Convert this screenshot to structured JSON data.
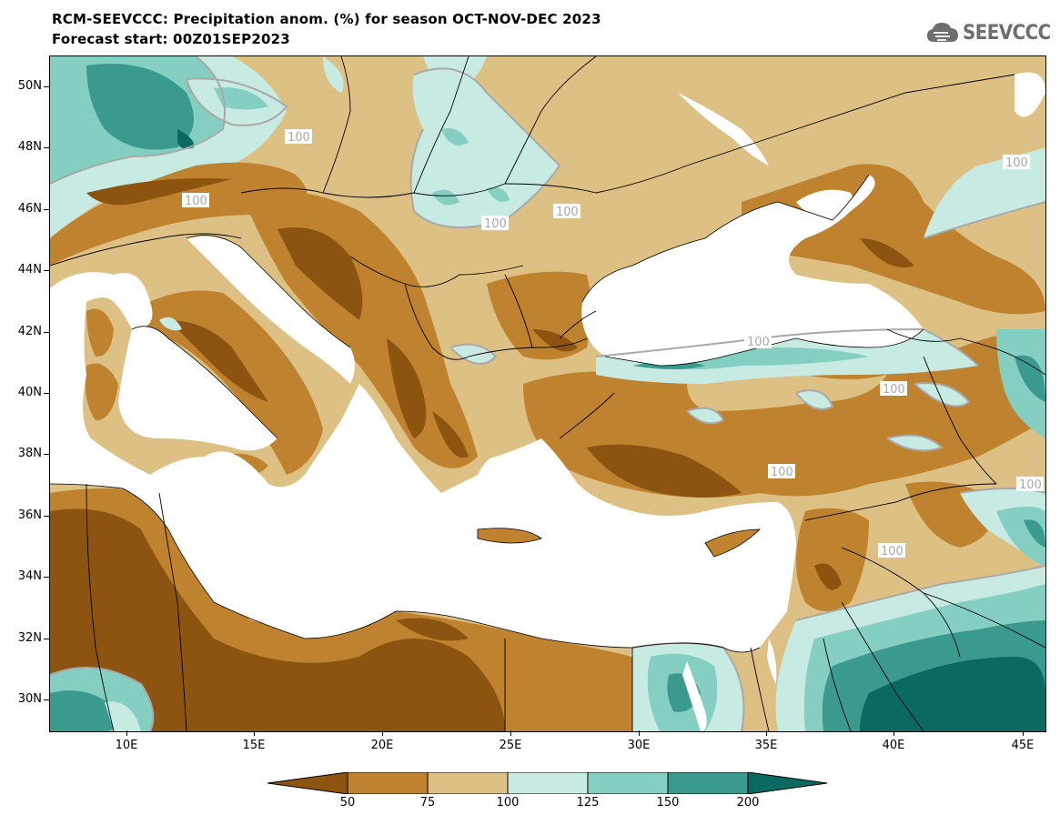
{
  "header": {
    "title_line1": "RCM-SEEVCCC: Precipitation anom. (%) for season OCT-NOV-DEC 2023",
    "title_line2": "Forecast start: 00Z01SEP2023",
    "logo_text": "SEEVCCC",
    "logo_icon": "cloud-icon"
  },
  "map": {
    "region": "Balkans, Eastern Mediterranean and Black Sea",
    "lat_labels": [
      "50N",
      "48N",
      "46N",
      "44N",
      "42N",
      "40N",
      "38N",
      "36N",
      "34N",
      "32N",
      "30N"
    ],
    "lon_labels": [
      "10E",
      "15E",
      "20E",
      "25E",
      "30E",
      "35E",
      "40E",
      "45E"
    ],
    "contour_labels": [
      "100",
      "100",
      "100",
      "100",
      "100",
      "100",
      "100",
      "100",
      "100",
      "100",
      "100",
      "100"
    ],
    "sea_color": "#ffffff",
    "border_color": "#000000",
    "contour_line_color": "#a9a9a9"
  },
  "colorbar": {
    "labels": [
      "50",
      "75",
      "100",
      "125",
      "150",
      "200"
    ],
    "colors": [
      "#8c5410",
      "#bf822f",
      "#ddc083",
      "#c7ebe3",
      "#84cfc2",
      "#3b9a8e",
      "#0a6a62"
    ]
  }
}
